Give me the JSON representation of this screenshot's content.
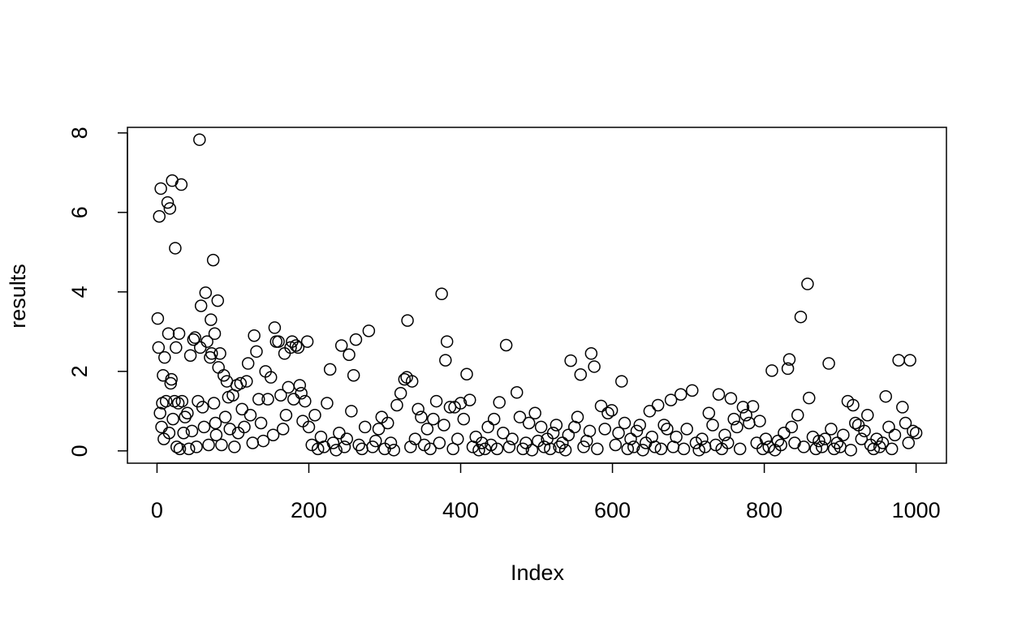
{
  "chart_data": {
    "type": "scatter",
    "x_label": "Index",
    "y_label": "results",
    "xlim": [
      -38.96,
      1039.96
    ],
    "ylim": [
      -0.31,
      8.14
    ],
    "xticks": [
      0,
      200,
      400,
      600,
      800,
      1000
    ],
    "yticks": [
      0,
      2,
      4,
      6,
      8
    ],
    "color": "#000000",
    "x": [
      1,
      2,
      3,
      4,
      5,
      6,
      7,
      8,
      9,
      10,
      12,
      14,
      15,
      16,
      17,
      18,
      19,
      20,
      21,
      23,
      24,
      25,
      26,
      28,
      29,
      30,
      32,
      33,
      35,
      37,
      40,
      42,
      44,
      46,
      48,
      50,
      52,
      54,
      56,
      57,
      58,
      60,
      62,
      64,
      66,
      68,
      70,
      71,
      72,
      74,
      75,
      76,
      77,
      78,
      80,
      81,
      83,
      85,
      88,
      90,
      92,
      94,
      96,
      100,
      102,
      105,
      107,
      110,
      112,
      115,
      118,
      120,
      123,
      126,
      128,
      131,
      134,
      137,
      140,
      143,
      146,
      150,
      153,
      155,
      157,
      160,
      163,
      166,
      168,
      170,
      173,
      176,
      178,
      180,
      183,
      186,
      188,
      190,
      192,
      195,
      198,
      200,
      204,
      208,
      212,
      216,
      220,
      224,
      228,
      232,
      236,
      240,
      243,
      247,
      250,
      253,
      256,
      259,
      262,
      266,
      270,
      274,
      279,
      284,
      288,
      292,
      296,
      300,
      304,
      308,
      312,
      316,
      321,
      326,
      329,
      330,
      334,
      336,
      340,
      344,
      348,
      352,
      356,
      360,
      364,
      368,
      372,
      375,
      378,
      380,
      382,
      386,
      390,
      392,
      396,
      400,
      404,
      408,
      412,
      416,
      420,
      424,
      428,
      432,
      436,
      440,
      444,
      448,
      451,
      456,
      460,
      464,
      468,
      474,
      478,
      482,
      486,
      490,
      494,
      498,
      502,
      506,
      510,
      514,
      518,
      522,
      526,
      530,
      534,
      538,
      542,
      545,
      550,
      554,
      558,
      562,
      566,
      570,
      572,
      576,
      580,
      585,
      590,
      594,
      599,
      604,
      608,
      612,
      616,
      620,
      624,
      628,
      632,
      636,
      640,
      644,
      649,
      652,
      656,
      660,
      664,
      668,
      672,
      677,
      680,
      684,
      690,
      694,
      698,
      705,
      710,
      714,
      718,
      722,
      727,
      732,
      736,
      740,
      744,
      748,
      752,
      756,
      760,
      764,
      768,
      772,
      776,
      780,
      785,
      790,
      794,
      798,
      802,
      806,
      810,
      814,
      818,
      822,
      826,
      831,
      833,
      836,
      840,
      844,
      848,
      852,
      857,
      859,
      864,
      868,
      872,
      876,
      880,
      885,
      888,
      892,
      896,
      900,
      904,
      910,
      914,
      917,
      920,
      924,
      928,
      932,
      936,
      940,
      944,
      948,
      952,
      956,
      960,
      964,
      968,
      972,
      977,
      982,
      986,
      990,
      992,
      996,
      1000
    ],
    "values": [
      3.33,
      2.6,
      5.9,
      0.95,
      6.6,
      0.6,
      1.2,
      1.9,
      0.3,
      2.35,
      1.25,
      6.25,
      2.95,
      0.45,
      6.1,
      1.7,
      1.8,
      6.8,
      0.8,
      1.25,
      5.1,
      2.6,
      0.1,
      1.2,
      2.95,
      0.05,
      6.7,
      1.25,
      0.45,
      0.85,
      0.95,
      0.05,
      2.4,
      0.5,
      2.8,
      2.85,
      0.1,
      1.25,
      7.83,
      2.6,
      3.65,
      1.1,
      0.6,
      3.98,
      2.75,
      0.15,
      2.35,
      3.3,
      2.45,
      4.8,
      1.2,
      2.95,
      0.7,
      0.4,
      3.78,
      2.1,
      2.45,
      0.15,
      1.9,
      0.85,
      1.75,
      1.35,
      0.55,
      1.4,
      0.1,
      1.65,
      0.45,
      1.7,
      1.05,
      0.6,
      1.75,
      2.2,
      0.9,
      0.2,
      2.9,
      2.5,
      1.3,
      0.7,
      0.25,
      2.0,
      1.3,
      1.85,
      0.4,
      3.1,
      2.75,
      2.75,
      1.4,
      0.55,
      2.45,
      0.9,
      1.6,
      2.6,
      2.75,
      1.3,
      2.65,
      2.6,
      1.65,
      1.45,
      0.75,
      1.25,
      2.75,
      0.6,
      0.15,
      0.9,
      0.05,
      0.35,
      0.1,
      1.2,
      2.05,
      0.2,
      0.02,
      0.45,
      2.65,
      0.1,
      0.3,
      2.42,
      1.0,
      1.9,
      2.8,
      0.15,
      0.05,
      0.6,
      3.02,
      0.1,
      0.25,
      0.55,
      0.85,
      0.05,
      0.7,
      0.2,
      0.02,
      1.15,
      1.45,
      1.8,
      1.85,
      3.28,
      0.1,
      1.75,
      0.3,
      1.05,
      0.85,
      0.15,
      0.55,
      0.05,
      0.8,
      1.25,
      0.2,
      3.95,
      0.65,
      2.28,
      2.75,
      1.1,
      0.05,
      1.1,
      0.3,
      1.2,
      0.8,
      1.93,
      1.28,
      0.1,
      0.35,
      0.02,
      0.2,
      0.05,
      0.6,
      0.15,
      0.8,
      0.05,
      1.22,
      0.45,
      2.66,
      0.1,
      0.3,
      1.47,
      0.85,
      0.05,
      0.2,
      0.7,
      0.02,
      0.95,
      0.25,
      0.6,
      0.1,
      0.3,
      0.05,
      0.45,
      0.65,
      0.1,
      0.2,
      0.02,
      0.4,
      2.27,
      0.6,
      0.85,
      1.92,
      0.1,
      0.25,
      0.5,
      2.45,
      2.12,
      0.05,
      1.13,
      0.55,
      0.95,
      1.02,
      0.15,
      0.45,
      1.75,
      0.7,
      0.05,
      0.3,
      0.1,
      0.5,
      0.65,
      0.02,
      0.2,
      1.0,
      0.35,
      0.1,
      1.15,
      0.05,
      0.65,
      0.55,
      1.28,
      0.1,
      0.35,
      1.42,
      0.05,
      0.55,
      1.52,
      0.2,
      0.02,
      0.3,
      0.1,
      0.95,
      0.65,
      0.15,
      1.42,
      0.05,
      0.4,
      0.2,
      1.32,
      0.8,
      0.6,
      0.05,
      1.1,
      0.9,
      0.7,
      1.12,
      0.2,
      0.75,
      0.05,
      0.3,
      0.1,
      2.02,
      0.02,
      0.25,
      0.15,
      0.45,
      2.07,
      2.3,
      0.6,
      0.2,
      0.9,
      3.37,
      0.1,
      4.2,
      1.33,
      0.35,
      0.05,
      0.25,
      0.1,
      0.3,
      2.2,
      0.55,
      0.05,
      0.2,
      0.1,
      0.4,
      1.25,
      0.02,
      1.15,
      0.7,
      0.65,
      0.3,
      0.5,
      0.9,
      0.15,
      0.05,
      0.3,
      0.1,
      0.2,
      1.37,
      0.6,
      0.05,
      0.4,
      2.28,
      1.1,
      0.7,
      0.2,
      2.28,
      0.5,
      0.45
    ]
  }
}
